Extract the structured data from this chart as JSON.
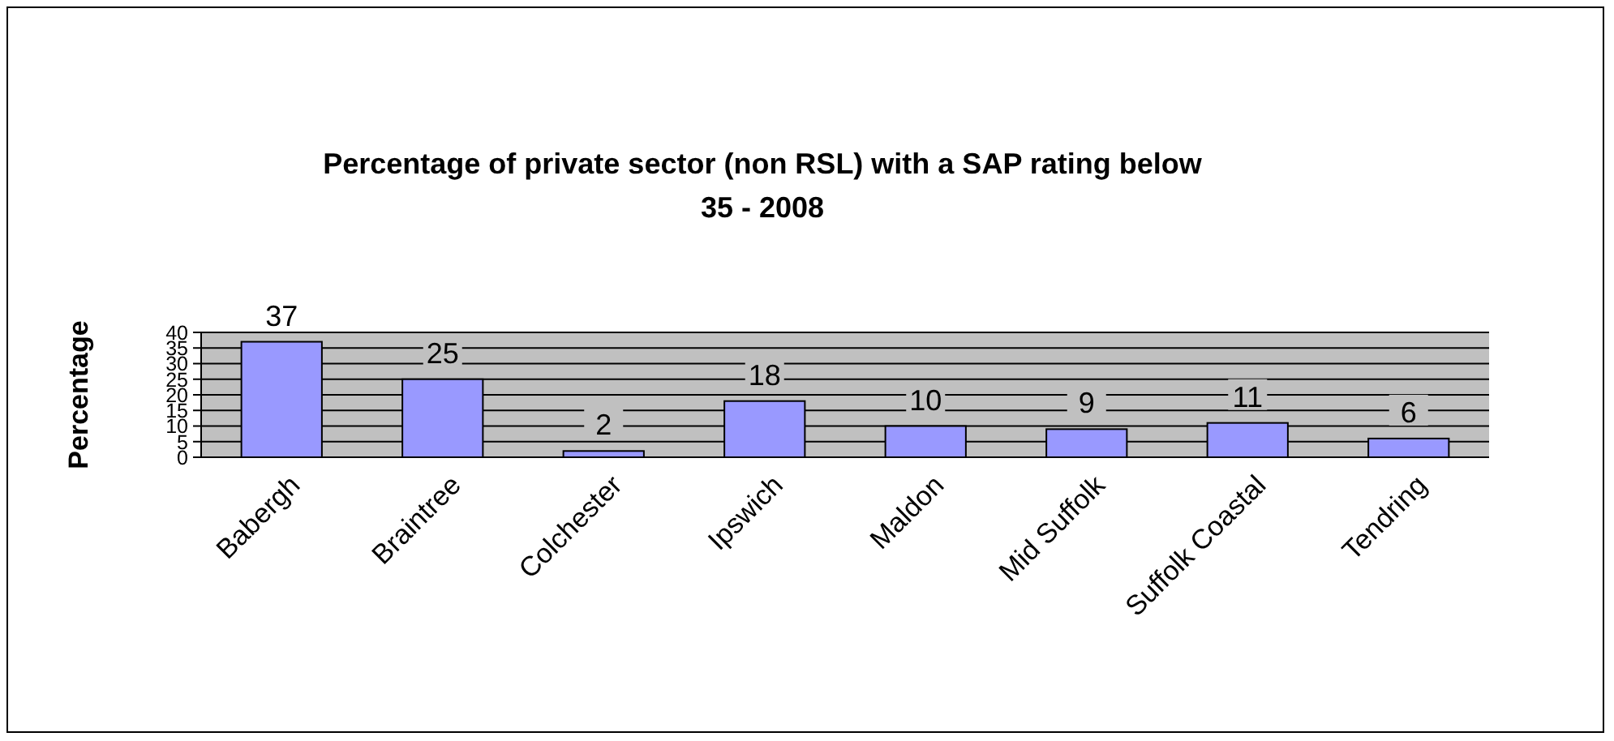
{
  "chart_data": {
    "type": "bar",
    "title": "Percentage of private sector (non RSL) with a SAP rating below 35 - 2008",
    "ylabel": "Percentage",
    "categories": [
      "Babergh",
      "Braintree",
      "Colchester",
      "Ipswich",
      "Maldon",
      "Mid Suffolk",
      "Suffolk Coastal",
      "Tendring"
    ],
    "values": [
      37,
      25,
      2,
      18,
      10,
      9,
      11,
      6
    ],
    "color": "#9999ff",
    "ylim": [
      0,
      40
    ],
    "yticks": [
      0,
      5,
      10,
      15,
      20,
      25,
      30,
      35,
      40
    ],
    "grid": "y",
    "data_labels": true,
    "legend": false
  }
}
